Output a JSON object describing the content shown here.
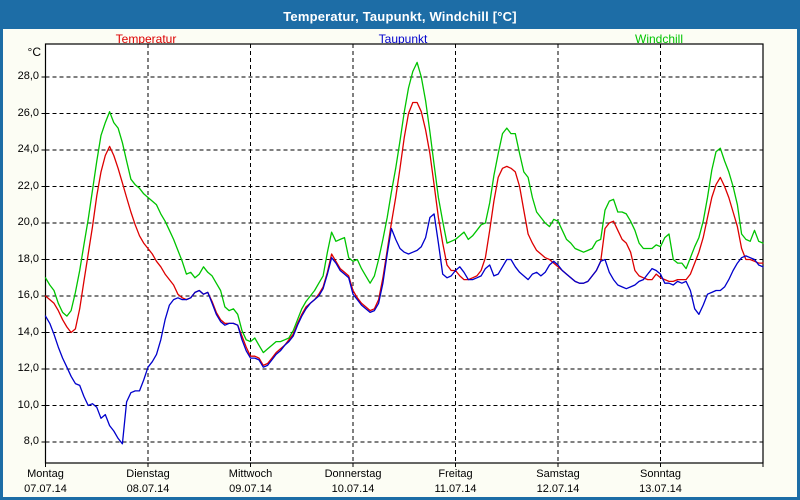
{
  "window": {
    "title": "Temperatur, Taupunkt, Windchill [°C]",
    "titlebar_color": "#1d6da6",
    "background_color": "#fcfdf4",
    "plot_background_color": "#ffffff"
  },
  "legend": {
    "items": [
      {
        "label": "Temperatur",
        "color": "#dd0000"
      },
      {
        "label": "Taupunkt",
        "color": "#0000cc"
      },
      {
        "label": "Windchill",
        "color": "#00c400"
      }
    ]
  },
  "y_axis": {
    "unit": "°C",
    "ticks": [
      {
        "value": 28,
        "label": "28,0"
      },
      {
        "value": 26,
        "label": "26,0"
      },
      {
        "value": 24,
        "label": "24,0"
      },
      {
        "value": 22,
        "label": "22,0"
      },
      {
        "value": 20,
        "label": "20,0"
      },
      {
        "value": 18,
        "label": "18,0"
      },
      {
        "value": 16,
        "label": "16,0"
      },
      {
        "value": 14,
        "label": "14,0"
      },
      {
        "value": 12,
        "label": "12,0"
      },
      {
        "value": 10,
        "label": "10,0"
      },
      {
        "value": 8,
        "label": "8,0"
      }
    ]
  },
  "x_axis": {
    "days": [
      {
        "name": "Montag",
        "date": "07.07.14"
      },
      {
        "name": "Dienstag",
        "date": "08.07.14"
      },
      {
        "name": "Mittwoch",
        "date": "09.07.14"
      },
      {
        "name": "Donnerstag",
        "date": "10.07.14"
      },
      {
        "name": "Freitag",
        "date": "11.07.14"
      },
      {
        "name": "Samstag",
        "date": "12.07.14"
      },
      {
        "name": "Sonntag",
        "date": "13.07.14"
      }
    ]
  },
  "chart_data": {
    "type": "line",
    "title": "Temperatur, Taupunkt, Windchill [°C]",
    "ylabel": "°C",
    "x_unit": "hours since Montag 07.07.14 00:00 (hourly estimates read from plot)",
    "x_range_hours": [
      0,
      168
    ],
    "ylim": [
      7,
      29.5
    ],
    "y_gridlines": [
      8,
      10,
      12,
      14,
      16,
      18,
      20,
      22,
      24,
      26,
      28
    ],
    "x_gridlines_hours": [
      0,
      24,
      48,
      72,
      96,
      120,
      144,
      168
    ],
    "grid": true,
    "legend_position": "top",
    "series": [
      {
        "name": "Temperatur",
        "color": "#dd0000",
        "values": [
          16.0,
          15.8,
          15.6,
          15.2,
          14.7,
          14.3,
          14.0,
          14.2,
          15.3,
          16.8,
          18.3,
          19.8,
          21.5,
          22.8,
          23.7,
          24.2,
          23.7,
          23.0,
          22.2,
          21.4,
          20.6,
          19.9,
          19.3,
          18.9,
          18.6,
          18.3,
          17.9,
          17.6,
          17.2,
          16.9,
          16.6,
          16.1,
          15.9,
          15.8,
          15.9,
          16.2,
          16.3,
          16.1,
          16.2,
          15.7,
          15.1,
          14.7,
          14.5,
          14.5,
          14.5,
          14.4,
          13.8,
          13.2,
          12.7,
          12.7,
          12.6,
          12.2,
          12.3,
          12.6,
          12.9,
          13.1,
          13.3,
          13.6,
          13.9,
          14.5,
          15.0,
          15.4,
          15.6,
          15.8,
          16.1,
          16.5,
          17.3,
          18.3,
          17.9,
          17.5,
          17.3,
          17.1,
          16.3,
          15.9,
          15.6,
          15.4,
          15.2,
          15.3,
          15.8,
          17.0,
          18.5,
          20.0,
          21.4,
          23.0,
          24.7,
          26.0,
          26.6,
          26.6,
          26.1,
          25.1,
          23.8,
          22.1,
          20.3,
          18.9,
          17.7,
          17.4,
          17.4,
          17.1,
          16.9,
          16.9,
          17.0,
          17.1,
          17.4,
          18.1,
          19.6,
          21.2,
          22.5,
          23.0,
          23.1,
          23.0,
          22.8,
          22.0,
          20.7,
          19.4,
          18.9,
          18.5,
          18.3,
          18.1,
          18.0,
          17.8,
          17.6,
          17.4,
          17.2,
          17.0,
          16.8,
          16.7,
          16.7,
          16.8,
          17.1,
          17.4,
          17.9,
          19.7,
          20.0,
          20.1,
          19.6,
          19.1,
          18.9,
          18.4,
          17.4,
          17.1,
          17.0,
          16.9,
          16.9,
          17.2,
          17.0,
          16.9,
          16.8,
          16.8,
          16.9,
          16.9,
          16.9,
          17.2,
          17.8,
          18.4,
          19.2,
          20.3,
          21.4,
          22.1,
          22.5,
          22.0,
          21.4,
          20.6,
          19.8,
          18.6,
          18.0,
          18.0,
          17.9,
          17.8,
          17.8
        ]
      },
      {
        "name": "Taupunkt",
        "color": "#0000cc",
        "values": [
          14.9,
          14.5,
          13.9,
          13.2,
          12.6,
          12.1,
          11.6,
          11.2,
          11.1,
          10.5,
          10.0,
          10.1,
          9.9,
          9.3,
          9.5,
          8.9,
          8.6,
          8.2,
          7.9,
          10.2,
          10.7,
          10.8,
          10.8,
          11.4,
          12.1,
          12.4,
          12.8,
          13.6,
          14.7,
          15.5,
          15.8,
          15.9,
          15.8,
          15.8,
          15.9,
          16.2,
          16.3,
          16.1,
          16.2,
          15.6,
          15.0,
          14.6,
          14.4,
          14.5,
          14.5,
          14.4,
          13.6,
          13.0,
          12.6,
          12.6,
          12.5,
          12.1,
          12.2,
          12.5,
          12.8,
          13.0,
          13.3,
          13.5,
          13.8,
          14.4,
          14.9,
          15.3,
          15.6,
          15.8,
          16.0,
          16.4,
          17.2,
          18.1,
          17.8,
          17.4,
          17.2,
          17.0,
          16.1,
          15.8,
          15.5,
          15.3,
          15.1,
          15.2,
          15.6,
          16.7,
          18.3,
          19.7,
          19.1,
          18.6,
          18.4,
          18.3,
          18.4,
          18.5,
          18.7,
          19.2,
          20.3,
          20.5,
          18.9,
          17.2,
          17.0,
          17.1,
          17.4,
          17.6,
          17.3,
          16.9,
          16.9,
          17.0,
          17.1,
          17.5,
          17.7,
          17.1,
          17.2,
          17.6,
          18.0,
          18.0,
          17.6,
          17.3,
          17.1,
          16.9,
          17.2,
          17.3,
          17.1,
          17.3,
          17.7,
          17.9,
          17.7,
          17.4,
          17.2,
          17.0,
          16.8,
          16.7,
          16.7,
          16.8,
          17.1,
          17.4,
          17.9,
          18.0,
          17.3,
          16.9,
          16.6,
          16.5,
          16.4,
          16.5,
          16.6,
          16.8,
          16.9,
          17.2,
          17.5,
          17.4,
          17.2,
          16.7,
          16.7,
          16.6,
          16.8,
          16.7,
          16.8,
          16.3,
          15.3,
          15.0,
          15.5,
          16.1,
          16.2,
          16.3,
          16.3,
          16.5,
          16.9,
          17.4,
          17.8,
          18.1,
          18.2,
          18.1,
          18.0,
          17.7,
          17.6
        ]
      },
      {
        "name": "Windchill",
        "color": "#00c400",
        "values": [
          17.0,
          16.6,
          16.3,
          15.6,
          15.1,
          14.9,
          15.2,
          16.2,
          17.4,
          18.8,
          20.2,
          21.8,
          23.4,
          24.8,
          25.5,
          26.1,
          25.5,
          25.2,
          24.4,
          23.4,
          22.4,
          22.1,
          21.9,
          21.6,
          21.4,
          21.2,
          21.0,
          20.5,
          20.1,
          19.6,
          19.1,
          18.5,
          17.9,
          17.2,
          17.3,
          17.0,
          17.2,
          17.6,
          17.3,
          17.1,
          16.7,
          16.3,
          15.4,
          15.2,
          15.3,
          15.0,
          14.1,
          13.6,
          13.5,
          13.7,
          13.3,
          12.9,
          13.1,
          13.3,
          13.5,
          13.5,
          13.6,
          13.7,
          14.1,
          14.7,
          15.3,
          15.7,
          16.0,
          16.3,
          16.7,
          17.1,
          18.4,
          19.5,
          19.0,
          19.1,
          19.2,
          18.1,
          17.9,
          18.0,
          17.5,
          17.1,
          16.7,
          17.1,
          18.0,
          19.1,
          20.3,
          21.7,
          23.0,
          24.5,
          26.1,
          27.4,
          28.3,
          28.8,
          28.0,
          26.7,
          25.0,
          23.2,
          21.4,
          20.1,
          18.9,
          19.0,
          19.1,
          19.3,
          19.5,
          19.1,
          19.3,
          19.6,
          19.9,
          20.0,
          21.1,
          22.6,
          23.8,
          24.9,
          25.2,
          24.9,
          24.9,
          23.8,
          22.8,
          22.5,
          21.4,
          20.6,
          20.3,
          20.0,
          19.8,
          20.2,
          20.1,
          19.6,
          19.1,
          18.9,
          18.6,
          18.5,
          18.4,
          18.5,
          18.6,
          19.0,
          19.1,
          20.7,
          21.2,
          21.3,
          20.6,
          20.6,
          20.5,
          20.1,
          19.6,
          18.9,
          18.6,
          18.6,
          18.6,
          18.8,
          18.7,
          19.2,
          19.4,
          18.0,
          17.8,
          17.8,
          17.5,
          18.1,
          18.7,
          19.2,
          20.1,
          21.4,
          22.9,
          23.9,
          24.1,
          23.4,
          22.8,
          22.0,
          21.0,
          19.4,
          19.1,
          19.0,
          19.6,
          19.0,
          18.9
        ]
      }
    ]
  }
}
